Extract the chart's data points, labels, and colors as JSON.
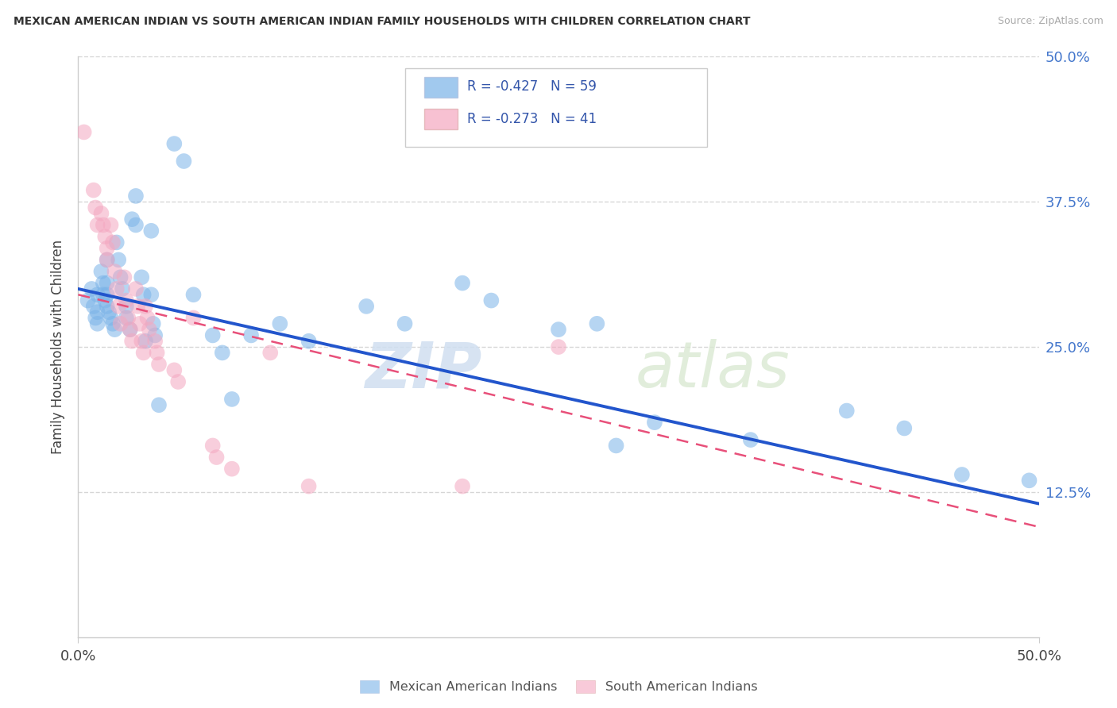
{
  "title": "MEXICAN AMERICAN INDIAN VS SOUTH AMERICAN INDIAN FAMILY HOUSEHOLDS WITH CHILDREN CORRELATION CHART",
  "source": "Source: ZipAtlas.com",
  "ylabel": "Family Households with Children",
  "xlim": [
    0,
    0.5
  ],
  "ylim": [
    0,
    0.5
  ],
  "ytick_vals": [
    0.125,
    0.25,
    0.375,
    0.5
  ],
  "ytick_labels": [
    "12.5%",
    "25.0%",
    "37.5%",
    "50.0%"
  ],
  "xtick_vals": [
    0.0,
    0.5
  ],
  "xtick_labels": [
    "0.0%",
    "50.0%"
  ],
  "grid_color": "#cccccc",
  "background_color": "#ffffff",
  "blue_color": "#7ab3e8",
  "pink_color": "#f4a7c0",
  "blue_line_color": "#2255cc",
  "pink_line_color": "#e8507a",
  "legend_r_blue": "R = -0.427",
  "legend_n_blue": "N = 59",
  "legend_r_pink": "R = -0.273",
  "legend_n_pink": "N = 41",
  "legend_label_blue": "Mexican American Indians",
  "legend_label_pink": "South American Indians",
  "watermark_zip": "ZIP",
  "watermark_atlas": "atlas",
  "blue_scatter": [
    [
      0.005,
      0.29
    ],
    [
      0.007,
      0.3
    ],
    [
      0.008,
      0.285
    ],
    [
      0.009,
      0.275
    ],
    [
      0.01,
      0.295
    ],
    [
      0.01,
      0.28
    ],
    [
      0.01,
      0.27
    ],
    [
      0.012,
      0.315
    ],
    [
      0.013,
      0.305
    ],
    [
      0.013,
      0.295
    ],
    [
      0.014,
      0.29
    ],
    [
      0.015,
      0.325
    ],
    [
      0.015,
      0.305
    ],
    [
      0.015,
      0.295
    ],
    [
      0.015,
      0.285
    ],
    [
      0.016,
      0.28
    ],
    [
      0.017,
      0.275
    ],
    [
      0.018,
      0.27
    ],
    [
      0.019,
      0.265
    ],
    [
      0.02,
      0.34
    ],
    [
      0.021,
      0.325
    ],
    [
      0.022,
      0.31
    ],
    [
      0.023,
      0.3
    ],
    [
      0.025,
      0.285
    ],
    [
      0.025,
      0.275
    ],
    [
      0.027,
      0.265
    ],
    [
      0.028,
      0.36
    ],
    [
      0.03,
      0.38
    ],
    [
      0.03,
      0.355
    ],
    [
      0.033,
      0.31
    ],
    [
      0.034,
      0.295
    ],
    [
      0.035,
      0.255
    ],
    [
      0.038,
      0.35
    ],
    [
      0.038,
      0.295
    ],
    [
      0.039,
      0.27
    ],
    [
      0.04,
      0.26
    ],
    [
      0.042,
      0.2
    ],
    [
      0.05,
      0.425
    ],
    [
      0.055,
      0.41
    ],
    [
      0.06,
      0.295
    ],
    [
      0.07,
      0.26
    ],
    [
      0.075,
      0.245
    ],
    [
      0.08,
      0.205
    ],
    [
      0.09,
      0.26
    ],
    [
      0.105,
      0.27
    ],
    [
      0.12,
      0.255
    ],
    [
      0.15,
      0.285
    ],
    [
      0.17,
      0.27
    ],
    [
      0.2,
      0.305
    ],
    [
      0.215,
      0.29
    ],
    [
      0.25,
      0.265
    ],
    [
      0.27,
      0.27
    ],
    [
      0.28,
      0.165
    ],
    [
      0.3,
      0.185
    ],
    [
      0.35,
      0.17
    ],
    [
      0.4,
      0.195
    ],
    [
      0.43,
      0.18
    ],
    [
      0.46,
      0.14
    ],
    [
      0.495,
      0.135
    ]
  ],
  "pink_scatter": [
    [
      0.003,
      0.435
    ],
    [
      0.008,
      0.385
    ],
    [
      0.009,
      0.37
    ],
    [
      0.01,
      0.355
    ],
    [
      0.012,
      0.365
    ],
    [
      0.013,
      0.355
    ],
    [
      0.014,
      0.345
    ],
    [
      0.015,
      0.335
    ],
    [
      0.015,
      0.325
    ],
    [
      0.017,
      0.355
    ],
    [
      0.018,
      0.34
    ],
    [
      0.019,
      0.315
    ],
    [
      0.02,
      0.3
    ],
    [
      0.021,
      0.285
    ],
    [
      0.022,
      0.27
    ],
    [
      0.024,
      0.31
    ],
    [
      0.025,
      0.29
    ],
    [
      0.026,
      0.275
    ],
    [
      0.027,
      0.265
    ],
    [
      0.028,
      0.255
    ],
    [
      0.03,
      0.3
    ],
    [
      0.031,
      0.285
    ],
    [
      0.032,
      0.27
    ],
    [
      0.033,
      0.255
    ],
    [
      0.034,
      0.245
    ],
    [
      0.035,
      0.285
    ],
    [
      0.036,
      0.275
    ],
    [
      0.037,
      0.265
    ],
    [
      0.04,
      0.255
    ],
    [
      0.041,
      0.245
    ],
    [
      0.042,
      0.235
    ],
    [
      0.05,
      0.23
    ],
    [
      0.052,
      0.22
    ],
    [
      0.06,
      0.275
    ],
    [
      0.07,
      0.165
    ],
    [
      0.072,
      0.155
    ],
    [
      0.08,
      0.145
    ],
    [
      0.1,
      0.245
    ],
    [
      0.12,
      0.13
    ],
    [
      0.2,
      0.13
    ],
    [
      0.25,
      0.25
    ]
  ],
  "blue_line_x": [
    0.0,
    0.5
  ],
  "blue_line_y": [
    0.3,
    0.115
  ],
  "pink_line_x": [
    0.0,
    0.5
  ],
  "pink_line_y": [
    0.295,
    0.095
  ]
}
